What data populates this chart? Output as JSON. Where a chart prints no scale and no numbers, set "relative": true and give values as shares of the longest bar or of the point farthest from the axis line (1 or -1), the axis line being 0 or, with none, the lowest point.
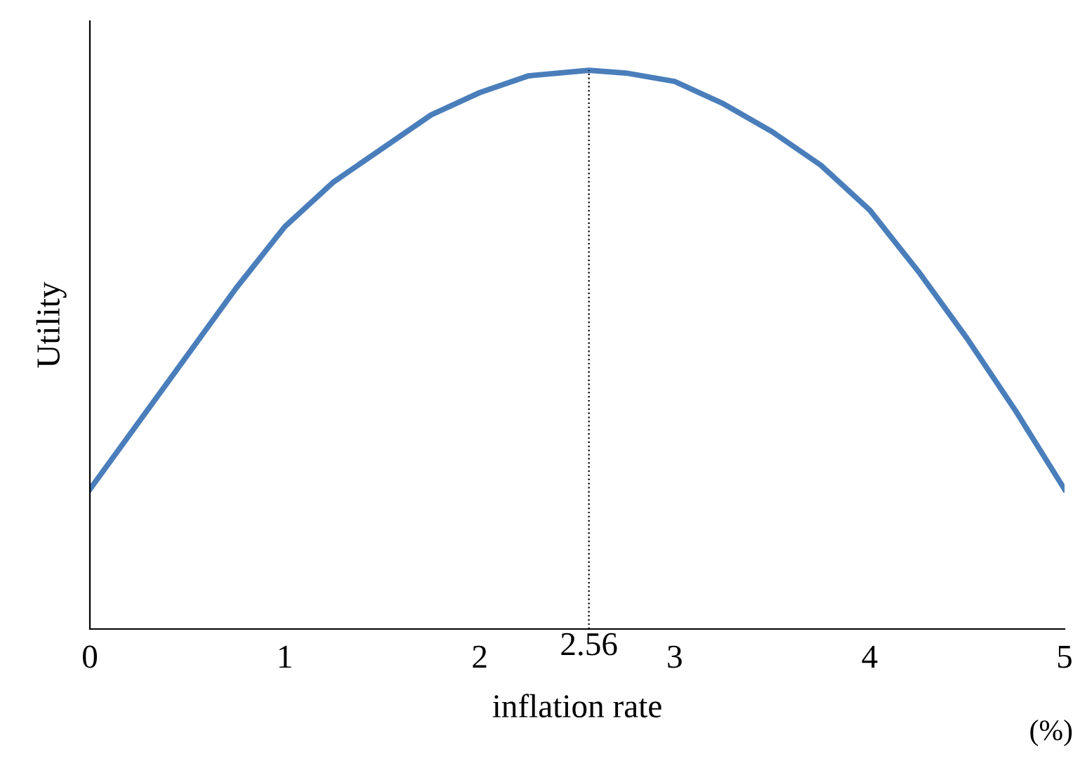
{
  "chart_data": {
    "type": "line",
    "relative": true,
    "xlabel": "inflation rate",
    "ylabel": "Utility",
    "x": [
      0,
      0.25,
      0.5,
      0.75,
      1,
      1.25,
      1.5,
      1.75,
      2,
      2.25,
      2.56,
      2.75,
      3,
      3.25,
      3.5,
      3.75,
      4,
      4.25,
      4.5,
      4.75,
      5
    ],
    "series": [
      {
        "color": "#4a7ebb",
        "values": [
          0.25,
          0.37,
          0.49,
          0.61,
          0.72,
          0.8,
          0.86,
          0.92,
          0.96,
          0.99,
          1.0,
          0.995,
          0.98,
          0.94,
          0.89,
          0.83,
          0.75,
          0.64,
          0.52,
          0.39,
          0.25
        ]
      }
    ],
    "xlim": [
      0,
      5
    ],
    "xticks": [
      0,
      1,
      2,
      3,
      4,
      5
    ],
    "ref_lines": [
      {
        "axis": "x",
        "value": 2.56,
        "label": "2.56",
        "color": "#000000",
        "line_style": "dotted"
      }
    ],
    "annotations": [
      "(%)"
    ],
    "grid": false,
    "legend": false,
    "marker": "none",
    "line_style": "solid"
  }
}
